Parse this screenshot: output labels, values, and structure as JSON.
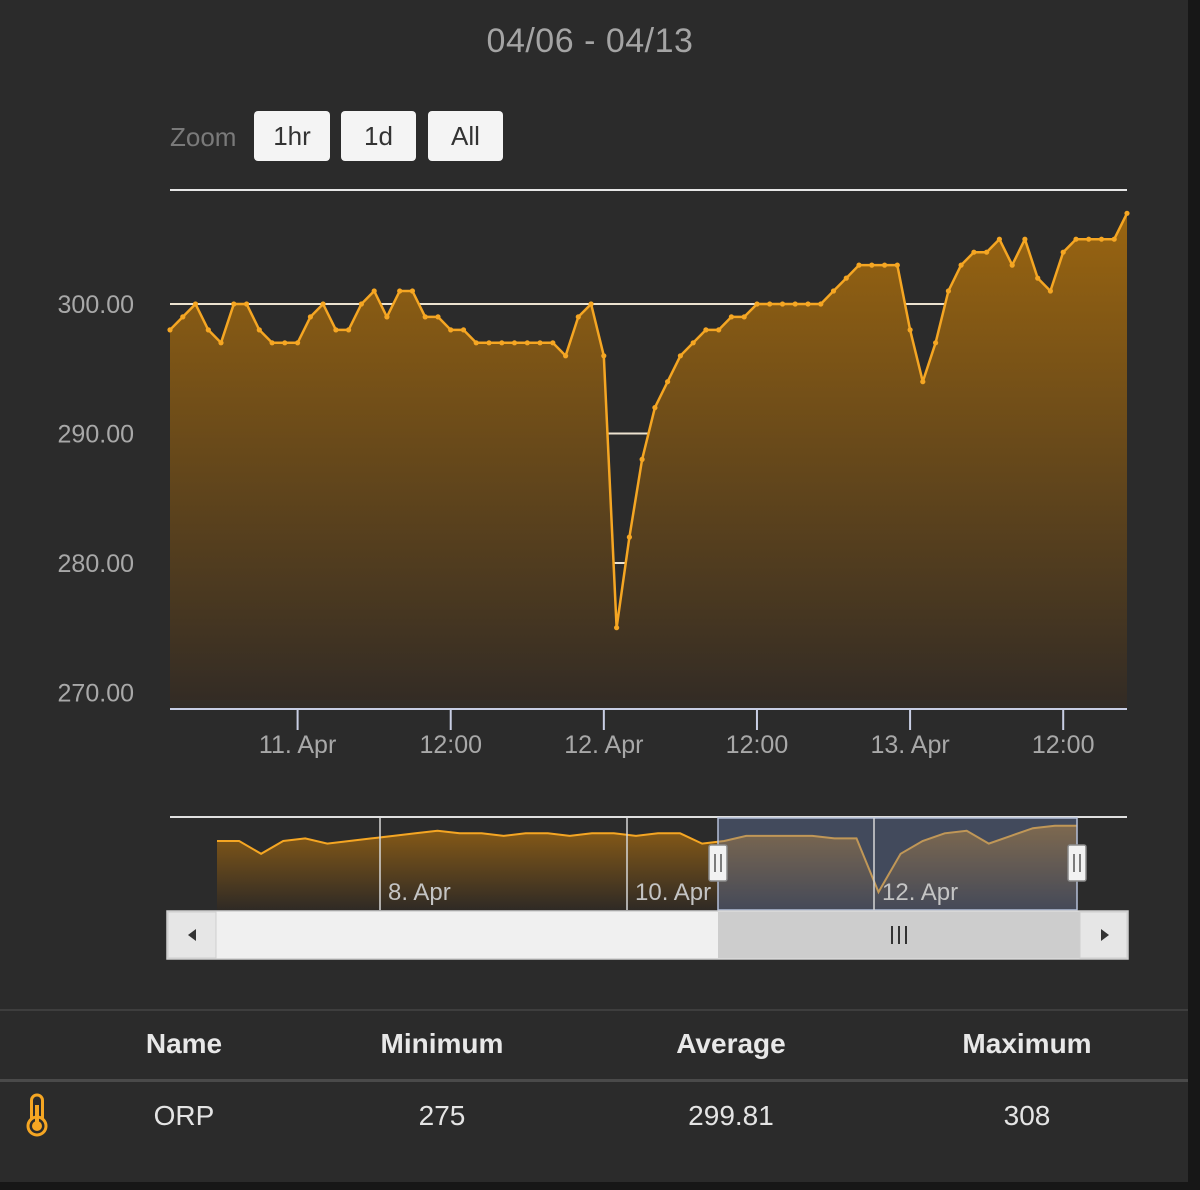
{
  "header": {
    "date_range": "04/06 - 04/13"
  },
  "zoom": {
    "label": "Zoom",
    "buttons": [
      "1hr",
      "1d",
      "All"
    ]
  },
  "chart_data": {
    "type": "area",
    "series": [
      {
        "name": "ORP",
        "x": [
          "2024-04-10 14:00",
          "2024-04-10 15:00",
          "2024-04-10 16:00",
          "2024-04-10 17:00",
          "2024-04-10 18:00",
          "2024-04-10 19:00",
          "2024-04-10 20:00",
          "2024-04-10 21:00",
          "2024-04-10 22:00",
          "2024-04-10 23:00",
          "2024-04-11 00:00",
          "2024-04-11 01:00",
          "2024-04-11 02:00",
          "2024-04-11 03:00",
          "2024-04-11 04:00",
          "2024-04-11 05:00",
          "2024-04-11 06:00",
          "2024-04-11 07:00",
          "2024-04-11 08:00",
          "2024-04-11 09:00",
          "2024-04-11 10:00",
          "2024-04-11 11:00",
          "2024-04-11 12:00",
          "2024-04-11 13:00",
          "2024-04-11 14:00",
          "2024-04-11 15:00",
          "2024-04-11 16:00",
          "2024-04-11 17:00",
          "2024-04-11 18:00",
          "2024-04-11 19:00",
          "2024-04-11 20:00",
          "2024-04-11 21:00",
          "2024-04-11 22:00",
          "2024-04-11 23:00",
          "2024-04-12 00:00",
          "2024-04-12 01:00",
          "2024-04-12 02:00",
          "2024-04-12 03:00",
          "2024-04-12 04:00",
          "2024-04-12 05:00",
          "2024-04-12 06:00",
          "2024-04-12 07:00",
          "2024-04-12 08:00",
          "2024-04-12 09:00",
          "2024-04-12 10:00",
          "2024-04-12 11:00",
          "2024-04-12 12:00",
          "2024-04-12 13:00",
          "2024-04-12 14:00",
          "2024-04-12 15:00",
          "2024-04-12 16:00",
          "2024-04-12 17:00",
          "2024-04-12 18:00",
          "2024-04-12 19:00",
          "2024-04-12 20:00",
          "2024-04-12 21:00",
          "2024-04-12 22:00",
          "2024-04-12 23:00",
          "2024-04-13 00:00",
          "2024-04-13 01:00",
          "2024-04-13 02:00",
          "2024-04-13 03:00",
          "2024-04-13 04:00",
          "2024-04-13 05:00",
          "2024-04-13 06:00",
          "2024-04-13 07:00",
          "2024-04-13 08:00",
          "2024-04-13 09:00",
          "2024-04-13 10:00",
          "2024-04-13 11:00",
          "2024-04-13 12:00",
          "2024-04-13 13:00",
          "2024-04-13 14:00",
          "2024-04-13 15:00",
          "2024-04-13 16:00",
          "2024-04-13 17:00"
        ],
        "values": [
          298,
          299,
          300,
          298,
          297,
          300,
          300,
          298,
          297,
          297,
          297,
          299,
          300,
          298,
          298,
          300,
          301,
          299,
          301,
          301,
          299,
          299,
          298,
          298,
          297,
          297,
          297,
          297,
          297,
          297,
          297,
          296,
          299,
          300,
          296,
          275,
          282,
          288,
          292,
          294,
          296,
          297,
          298,
          298,
          299,
          299,
          300,
          300,
          300,
          300,
          300,
          300,
          301,
          302,
          303,
          303,
          303,
          303,
          298,
          294,
          297,
          301,
          303,
          304,
          304,
          305,
          303,
          305,
          302,
          301,
          304,
          305,
          305,
          305,
          305,
          307
        ]
      }
    ],
    "ylim": [
      268.8,
      308.8
    ],
    "y_ticks": [
      "270.00",
      "280.00",
      "290.00",
      "300.00"
    ],
    "x_ticks": [
      "11. Apr",
      "12:00",
      "12. Apr",
      "12:00",
      "13. Apr",
      "12:00"
    ],
    "navigator": {
      "labels": [
        "8. Apr",
        "10. Apr",
        "12. Apr"
      ],
      "values": [
        297,
        297,
        292,
        297,
        298,
        296,
        297,
        298,
        299,
        300,
        301,
        300,
        300,
        299,
        300,
        300,
        299,
        300,
        300,
        299,
        300,
        300,
        296,
        297,
        299,
        299,
        299,
        299,
        298,
        298,
        277,
        292,
        297,
        300,
        301,
        296,
        299,
        302,
        303,
        303
      ]
    },
    "color": "#f5a623",
    "grid": true,
    "legend": "none"
  },
  "stats_table": {
    "headers": [
      "Name",
      "Minimum",
      "Average",
      "Maximum"
    ],
    "rows": [
      {
        "icon": "thermometer-icon",
        "name": "ORP",
        "minimum": "275",
        "average": "299.81",
        "maximum": "308"
      }
    ]
  }
}
